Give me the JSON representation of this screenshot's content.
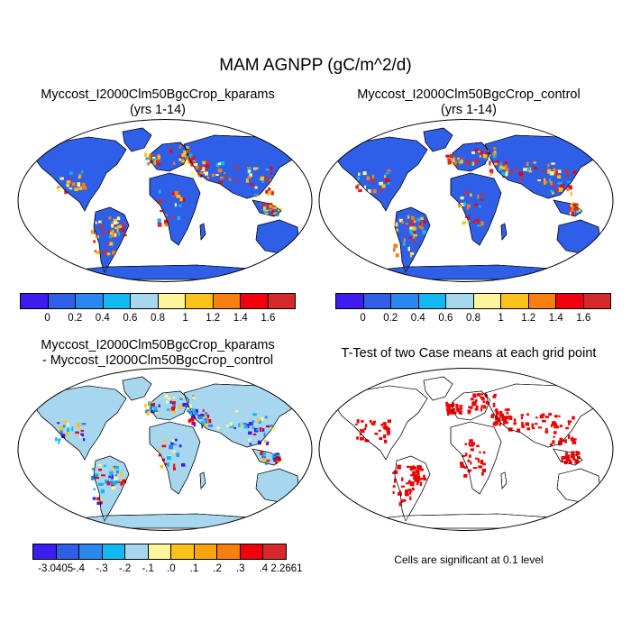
{
  "title": "MAM AGNPP (gC/m^2/d)",
  "panels": {
    "kparams": {
      "title_line1": "Myccost_I2000Clm50BgcCrop_kparams",
      "title_line2": "(yrs 1-14)"
    },
    "control": {
      "title_line1": "Myccost_I2000Clm50BgcCrop_control",
      "title_line2": "(yrs 1-14)"
    },
    "difference": {
      "title_line1": "Myccost_I2000Clm50BgcCrop_kparams",
      "title_line2": "- Myccost_I2000Clm50BgcCrop_control"
    },
    "ttest": {
      "title_line1": "T-Test of two Case means at each grid point",
      "note": "Cells are significant at 0.1 level"
    }
  },
  "colorbars": {
    "absolute": {
      "colors": [
        "#3d1cf0",
        "#2f5fe6",
        "#2b86ee",
        "#12b8f2",
        "#a7d7ef",
        "#fdf59a",
        "#fbc21b",
        "#f97f10",
        "#f0000a",
        "#d62a2a"
      ],
      "tick_labels": [
        "0",
        "0.2",
        "0.4",
        "0.6",
        "0.8",
        "1",
        "1.2",
        "1.4",
        "1.6"
      ]
    },
    "difference": {
      "colors": [
        "#3d1cf0",
        "#2f5fe6",
        "#2b86ee",
        "#12b8f2",
        "#a7d7ef",
        "#fdf59a",
        "#fbc21b",
        "#f9a30e",
        "#f97f10",
        "#f0000a",
        "#d62a2a"
      ],
      "tick_labels": [
        "-3.0405",
        "-.4",
        "-.3",
        "-.2",
        "-.1",
        ".0",
        ".1",
        ".2",
        ".3",
        ".4",
        "2.2661"
      ]
    }
  },
  "map_colors": {
    "ocean": "#ffffff",
    "outline": "#000000",
    "significant": "#ee0000"
  }
}
